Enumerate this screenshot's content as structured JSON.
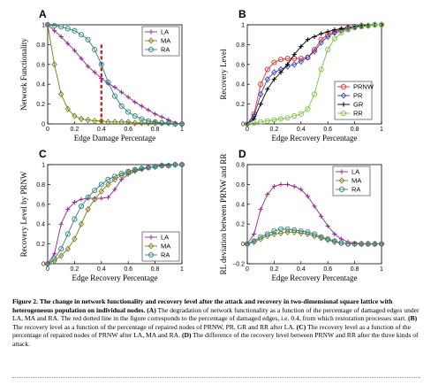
{
  "caption": {
    "label": "Figure 2.",
    "title": "The change in network functionality and recovery level after the attack and recovery in two-dimensional square lattice with heterogeneous population on individual nodes.",
    "panels": [
      {
        "tag": "(A)",
        "text": "The degradation of network functionality as a function of the percentage of damaged edges under LA, MA and RA. The red dotted line in the figure corresponds to the percentage of damaged edges, i.e. 0.4, from which restoration processes start."
      },
      {
        "tag": "(B)",
        "text": "The recovery level as a function of the percentage of repaired nodes of PRNW, PR, GR and RR after LA."
      },
      {
        "tag": "(C)",
        "text": "The recovery level as a function of the percentage of repaired nodes of PRNW after LA, MA and RA."
      },
      {
        "tag": "(D)",
        "text": "The difference of the recovery level between PRNW and RR after the three kinds of attack."
      }
    ]
  },
  "colors": {
    "LA": "#8c2a8c",
    "MA": "#7a7a1a",
    "RA": "#2f7f7f",
    "PRNW": "#e03030",
    "PR": "#4040c0",
    "GR": "#000000",
    "RR": "#7ac143",
    "cutoff": "#cc2222"
  },
  "chart_data": [
    {
      "panel": "A",
      "type": "line",
      "xlabel": "Edge Damage Percentage",
      "ylabel": "Network Functionality",
      "xlim": [
        0,
        1
      ],
      "ylim": [
        0,
        1
      ],
      "xticks": [
        "0",
        "0.2",
        "0.4",
        "0.6",
        "0.8",
        "1"
      ],
      "yticks": [
        "0",
        "0.2",
        "0.4",
        "0.6",
        "0.8",
        "1"
      ],
      "legend_position": "top-right",
      "cutoff_x": 0.4,
      "x": [
        0,
        0.05,
        0.1,
        0.15,
        0.2,
        0.25,
        0.3,
        0.35,
        0.4,
        0.45,
        0.5,
        0.55,
        0.6,
        0.65,
        0.7,
        0.75,
        0.8,
        0.85,
        0.9,
        0.95,
        1
      ],
      "series": [
        {
          "name": "LA",
          "marker": "plus",
          "values": [
            1,
            0.94,
            0.88,
            0.81,
            0.74,
            0.66,
            0.58,
            0.52,
            0.46,
            0.41,
            0.37,
            0.32,
            0.27,
            0.22,
            0.18,
            0.14,
            0.1,
            0.07,
            0.04,
            0.01,
            0
          ]
        },
        {
          "name": "MA",
          "marker": "diamond",
          "values": [
            1,
            0.6,
            0.3,
            0.15,
            0.08,
            0.05,
            0.04,
            0.03,
            0.03,
            0.02,
            0.02,
            0.02,
            0.02,
            0.01,
            0.01,
            0.01,
            0.01,
            0.01,
            0.01,
            0,
            0
          ]
        },
        {
          "name": "RA",
          "marker": "circle",
          "values": [
            1,
            0.99,
            0.98,
            0.96,
            0.94,
            0.9,
            0.85,
            0.75,
            0.6,
            0.42,
            0.28,
            0.18,
            0.12,
            0.08,
            0.05,
            0.03,
            0.02,
            0.01,
            0.01,
            0,
            0
          ]
        }
      ]
    },
    {
      "panel": "B",
      "type": "line",
      "xlabel": "Edge Recovery Percentage",
      "ylabel": "Recovery Level",
      "xlim": [
        0,
        1
      ],
      "ylim": [
        0,
        1
      ],
      "xticks": [
        "0",
        "0.2",
        "0.4",
        "0.6",
        "0.8",
        "1"
      ],
      "yticks": [
        "0",
        "0.2",
        "0.4",
        "0.6",
        "0.8",
        "1"
      ],
      "legend_position": "bottom-right",
      "x": [
        0,
        0.05,
        0.1,
        0.15,
        0.2,
        0.25,
        0.3,
        0.35,
        0.4,
        0.45,
        0.5,
        0.55,
        0.6,
        0.65,
        0.7,
        0.75,
        0.8,
        0.85,
        0.9,
        0.95,
        1
      ],
      "series": [
        {
          "name": "PRNW",
          "marker": "circle",
          "values": [
            0,
            0.1,
            0.4,
            0.55,
            0.62,
            0.65,
            0.66,
            0.66,
            0.66,
            0.67,
            0.75,
            0.85,
            0.9,
            0.93,
            0.95,
            0.97,
            0.98,
            0.99,
            0.99,
            1,
            1
          ]
        },
        {
          "name": "PR",
          "marker": "diamond",
          "values": [
            0,
            0.08,
            0.3,
            0.45,
            0.52,
            0.55,
            0.58,
            0.6,
            0.63,
            0.67,
            0.73,
            0.82,
            0.88,
            0.92,
            0.94,
            0.96,
            0.98,
            0.99,
            0.99,
            1,
            1
          ]
        },
        {
          "name": "GR",
          "marker": "plus",
          "values": [
            0,
            0.05,
            0.2,
            0.35,
            0.45,
            0.52,
            0.6,
            0.7,
            0.78,
            0.85,
            0.88,
            0.91,
            0.93,
            0.95,
            0.96,
            0.97,
            0.98,
            0.99,
            0.99,
            1,
            1
          ]
        },
        {
          "name": "RR",
          "marker": "circle",
          "values": [
            0,
            0.01,
            0.02,
            0.03,
            0.04,
            0.05,
            0.06,
            0.08,
            0.1,
            0.15,
            0.3,
            0.55,
            0.75,
            0.86,
            0.92,
            0.95,
            0.97,
            0.98,
            0.99,
            1,
            1
          ]
        }
      ]
    },
    {
      "panel": "C",
      "type": "line",
      "xlabel": "Edge Recovery Percentage",
      "ylabel": "Recovery Level by PRNW",
      "xlim": [
        0,
        1
      ],
      "ylim": [
        0,
        1
      ],
      "xticks": [
        "0",
        "0.2",
        "0.4",
        "0.6",
        "0.8",
        "1"
      ],
      "yticks": [
        "0",
        "0.2",
        "0.4",
        "0.6",
        "0.8",
        "1"
      ],
      "legend_position": "bottom-right",
      "x": [
        0,
        0.05,
        0.1,
        0.15,
        0.2,
        0.25,
        0.3,
        0.35,
        0.4,
        0.45,
        0.5,
        0.55,
        0.6,
        0.65,
        0.7,
        0.75,
        0.8,
        0.85,
        0.9,
        0.95,
        1
      ],
      "series": [
        {
          "name": "LA",
          "marker": "plus",
          "values": [
            0,
            0.1,
            0.4,
            0.55,
            0.62,
            0.65,
            0.66,
            0.66,
            0.66,
            0.67,
            0.75,
            0.85,
            0.9,
            0.93,
            0.95,
            0.97,
            0.98,
            0.99,
            0.99,
            1,
            1
          ]
        },
        {
          "name": "MA",
          "marker": "diamond",
          "values": [
            0,
            0.03,
            0.08,
            0.15,
            0.25,
            0.4,
            0.55,
            0.65,
            0.73,
            0.8,
            0.85,
            0.89,
            0.92,
            0.94,
            0.96,
            0.97,
            0.98,
            0.99,
            0.99,
            1,
            1
          ]
        },
        {
          "name": "RA",
          "marker": "circle",
          "values": [
            0,
            0.05,
            0.15,
            0.3,
            0.45,
            0.58,
            0.67,
            0.74,
            0.8,
            0.85,
            0.88,
            0.91,
            0.93,
            0.95,
            0.96,
            0.97,
            0.98,
            0.99,
            0.99,
            1,
            1
          ]
        }
      ]
    },
    {
      "panel": "D",
      "type": "line",
      "xlabel": "Edge Recovery Percentage",
      "ylabel": "RL deviation between PRNW and RR",
      "xlim": [
        0,
        1
      ],
      "ylim": [
        -0.2,
        0.8
      ],
      "xticks": [
        "0",
        "0.2",
        "0.4",
        "0.6",
        "0.8",
        "1"
      ],
      "yticks": [
        "−0.2",
        "0",
        "0.2",
        "0.4",
        "0.6",
        "0.8"
      ],
      "legend_position": "top-right",
      "x": [
        0,
        0.05,
        0.1,
        0.15,
        0.2,
        0.25,
        0.3,
        0.35,
        0.4,
        0.45,
        0.5,
        0.55,
        0.6,
        0.65,
        0.7,
        0.75,
        0.8,
        0.85,
        0.9,
        0.95,
        1
      ],
      "series": [
        {
          "name": "LA",
          "marker": "plus",
          "values": [
            0,
            0.1,
            0.35,
            0.5,
            0.58,
            0.6,
            0.6,
            0.58,
            0.55,
            0.48,
            0.38,
            0.28,
            0.18,
            0.1,
            0.05,
            0.02,
            0.01,
            0,
            0,
            0,
            0
          ]
        },
        {
          "name": "MA",
          "marker": "diamond",
          "values": [
            0,
            0.02,
            0.05,
            0.08,
            0.1,
            0.11,
            0.12,
            0.12,
            0.11,
            0.1,
            0.08,
            0.06,
            0.04,
            0.02,
            0.01,
            0,
            0,
            0,
            0,
            0,
            0
          ]
        },
        {
          "name": "RA",
          "marker": "circle",
          "values": [
            0,
            0.03,
            0.07,
            0.1,
            0.13,
            0.15,
            0.15,
            0.14,
            0.13,
            0.12,
            0.1,
            0.07,
            0.05,
            0.03,
            0.01,
            0,
            0,
            0,
            0,
            0,
            0
          ]
        }
      ]
    }
  ]
}
